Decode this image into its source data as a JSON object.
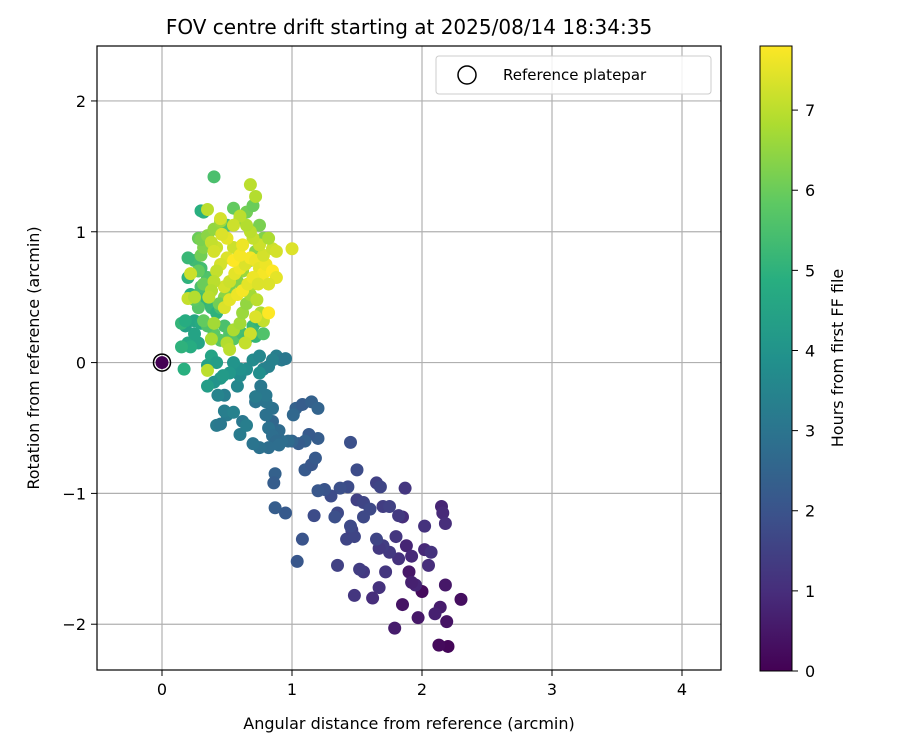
{
  "chart_data": {
    "type": "scatter",
    "title": "FOV centre drift starting at 2025/08/14 18:34:35",
    "xlabel": "Angular distance from reference (arcmin)",
    "ylabel": "Rotation from reference (arcmin)",
    "xlim": [
      -0.5,
      4.3
    ],
    "ylim": [
      -2.35,
      2.42
    ],
    "xticks": [
      0,
      1,
      2,
      3,
      4
    ],
    "yticks": [
      -2,
      -1,
      0,
      1,
      2
    ],
    "xtick_labels": [
      "0",
      "1",
      "2",
      "3",
      "4"
    ],
    "ytick_labels": [
      "−2",
      "−1",
      "0",
      "1",
      "2"
    ],
    "grid": true,
    "legend": {
      "placement": "top-right",
      "label": "Reference platepar"
    },
    "reference_point": {
      "x": 0,
      "y": 0
    },
    "colorbar": {
      "label": "Hours from first FF file",
      "colormap": "viridis",
      "range": [
        0,
        7.8
      ],
      "ticks": [
        0,
        1,
        2,
        3,
        4,
        5,
        6,
        7
      ],
      "tick_labels": [
        "0",
        "1",
        "2",
        "3",
        "4",
        "5",
        "6",
        "7"
      ]
    },
    "point_style": {
      "shape": "circle"
    },
    "points": [
      [
        2.2,
        -2.17,
        0.1
      ],
      [
        2.13,
        -2.16,
        0.2
      ],
      [
        2.3,
        -1.81,
        0.3
      ],
      [
        2.19,
        -1.98,
        0.4
      ],
      [
        2.18,
        -1.7,
        0.5
      ],
      [
        2.14,
        -1.87,
        0.6
      ],
      [
        2.1,
        -1.92,
        0.7
      ],
      [
        2.0,
        -1.75,
        0.2
      ],
      [
        1.95,
        -1.7,
        0.8
      ],
      [
        2.05,
        -1.55,
        1.0
      ],
      [
        2.02,
        -1.43,
        0.9
      ],
      [
        2.07,
        -1.45,
        1.1
      ],
      [
        1.9,
        -1.6,
        0.5
      ],
      [
        1.85,
        -1.85,
        0.4
      ],
      [
        1.79,
        -2.03,
        0.6
      ],
      [
        1.92,
        -1.68,
        0.7
      ],
      [
        1.97,
        -1.95,
        0.5
      ],
      [
        2.15,
        -1.1,
        0.8
      ],
      [
        2.16,
        -1.15,
        0.9
      ],
      [
        2.18,
        -1.23,
        1.0
      ],
      [
        2.02,
        -1.25,
        1.1
      ],
      [
        1.87,
        -0.96,
        1.2
      ],
      [
        1.85,
        -1.18,
        1.0
      ],
      [
        1.88,
        -1.4,
        0.8
      ],
      [
        1.92,
        -1.48,
        0.9
      ],
      [
        1.82,
        -1.5,
        1.1
      ],
      [
        1.8,
        -1.33,
        1.2
      ],
      [
        1.75,
        -1.45,
        1.3
      ],
      [
        1.7,
        -1.4,
        1.4
      ],
      [
        1.67,
        -1.42,
        1.3
      ],
      [
        1.72,
        -1.6,
        1.2
      ],
      [
        1.67,
        -1.72,
        1.1
      ],
      [
        1.62,
        -1.8,
        1.0
      ],
      [
        1.55,
        -1.6,
        1.3
      ],
      [
        1.52,
        -1.58,
        1.4
      ],
      [
        1.48,
        -1.78,
        1.2
      ],
      [
        1.35,
        -1.55,
        1.5
      ],
      [
        1.42,
        -1.35,
        1.6
      ],
      [
        1.46,
        -1.28,
        1.5
      ],
      [
        1.48,
        -1.33,
        1.6
      ],
      [
        1.45,
        -1.25,
        1.7
      ],
      [
        1.5,
        -1.05,
        1.5
      ],
      [
        1.55,
        -1.07,
        1.6
      ],
      [
        1.6,
        -1.12,
        1.7
      ],
      [
        1.65,
        -0.92,
        1.5
      ],
      [
        1.68,
        -0.95,
        1.6
      ],
      [
        1.7,
        -1.1,
        1.4
      ],
      [
        1.75,
        -1.1,
        1.5
      ],
      [
        1.82,
        -1.17,
        1.3
      ],
      [
        1.65,
        -1.35,
        1.6
      ],
      [
        1.55,
        -1.18,
        1.7
      ],
      [
        1.5,
        -0.82,
        1.8
      ],
      [
        1.45,
        -0.61,
        1.9
      ],
      [
        1.43,
        -0.95,
        1.8
      ],
      [
        1.37,
        -0.96,
        1.9
      ],
      [
        1.35,
        -1.15,
        1.7
      ],
      [
        1.3,
        -1.02,
        1.8
      ],
      [
        1.25,
        -0.97,
        2.0
      ],
      [
        1.2,
        -0.98,
        2.1
      ],
      [
        1.33,
        -1.18,
        1.9
      ],
      [
        1.17,
        -1.17,
        1.8
      ],
      [
        1.08,
        -1.35,
        2.0
      ],
      [
        1.04,
        -1.52,
        2.1
      ],
      [
        0.95,
        -1.15,
        2.2
      ],
      [
        0.87,
        -1.11,
        2.3
      ],
      [
        0.87,
        -0.85,
        2.4
      ],
      [
        0.86,
        -0.92,
        2.3
      ],
      [
        1.1,
        -0.82,
        2.2
      ],
      [
        1.15,
        -0.78,
        2.1
      ],
      [
        1.18,
        -0.73,
        2.2
      ],
      [
        1.2,
        -0.58,
        2.3
      ],
      [
        1.13,
        -0.55,
        2.2
      ],
      [
        1.1,
        -0.6,
        2.4
      ],
      [
        1.05,
        -0.62,
        2.3
      ],
      [
        1.0,
        -0.6,
        2.5
      ],
      [
        1.03,
        -0.35,
        2.4
      ],
      [
        1.08,
        -0.32,
        2.3
      ],
      [
        1.15,
        -0.3,
        2.4
      ],
      [
        1.2,
        -0.35,
        2.5
      ],
      [
        1.01,
        -0.4,
        2.6
      ],
      [
        0.97,
        -0.6,
        2.7
      ],
      [
        0.92,
        -0.6,
        2.8
      ],
      [
        0.9,
        -0.52,
        2.7
      ],
      [
        0.85,
        -0.45,
        2.6
      ],
      [
        0.82,
        -0.5,
        2.9
      ],
      [
        0.85,
        -0.56,
        2.8
      ],
      [
        0.88,
        -0.6,
        2.7
      ],
      [
        0.9,
        -0.63,
        2.8
      ],
      [
        0.85,
        -0.35,
        2.9
      ],
      [
        0.8,
        -0.3,
        3.0
      ],
      [
        0.8,
        -0.25,
        3.1
      ],
      [
        0.72,
        -0.3,
        3.0
      ],
      [
        0.72,
        -0.26,
        3.2
      ],
      [
        0.76,
        -0.18,
        3.1
      ],
      [
        0.8,
        -0.4,
        2.9
      ],
      [
        0.82,
        -0.65,
        2.8
      ],
      [
        0.75,
        -0.65,
        2.9
      ],
      [
        0.7,
        -0.62,
        3.0
      ],
      [
        0.62,
        -0.45,
        3.1
      ],
      [
        0.6,
        -0.55,
        3.2
      ],
      [
        0.65,
        -0.48,
        3.3
      ],
      [
        0.5,
        -0.4,
        3.2
      ],
      [
        0.48,
        -0.37,
        3.3
      ],
      [
        0.55,
        -0.38,
        3.4
      ],
      [
        0.42,
        -0.48,
        3.2
      ],
      [
        0.45,
        -0.47,
        3.1
      ],
      [
        0.48,
        -0.25,
        3.3
      ],
      [
        0.43,
        -0.25,
        3.5
      ],
      [
        0.58,
        -0.18,
        3.6
      ],
      [
        0.6,
        -0.1,
        3.7
      ],
      [
        0.65,
        -0.05,
        3.8
      ],
      [
        0.7,
        0.02,
        3.7
      ],
      [
        0.75,
        0.05,
        3.6
      ],
      [
        0.78,
        -0.05,
        3.5
      ],
      [
        0.82,
        -0.03,
        3.4
      ],
      [
        0.88,
        0.05,
        3.3
      ],
      [
        0.92,
        0.02,
        3.2
      ],
      [
        0.95,
        0.03,
        3.1
      ],
      [
        0.85,
        0.02,
        3.4
      ],
      [
        0.75,
        -0.08,
        3.8
      ],
      [
        0.6,
        -0.05,
        3.9
      ],
      [
        0.55,
        0.0,
        4.0
      ],
      [
        0.52,
        -0.08,
        4.1
      ],
      [
        0.45,
        -0.12,
        4.2
      ],
      [
        0.4,
        -0.15,
        4.0
      ],
      [
        0.35,
        -0.18,
        4.3
      ],
      [
        0.35,
        -0.02,
        4.4
      ],
      [
        0.38,
        0.05,
        4.5
      ],
      [
        0.42,
        0.0,
        4.3
      ],
      [
        0.47,
        -0.1,
        4.2
      ],
      [
        0.28,
        0.15,
        4.5
      ],
      [
        0.2,
        0.15,
        4.6
      ],
      [
        0.25,
        0.22,
        4.5
      ],
      [
        0.18,
        0.28,
        4.4
      ],
      [
        0.25,
        0.32,
        4.6
      ],
      [
        0.3,
        0.3,
        4.7
      ],
      [
        0.22,
        0.12,
        4.8
      ],
      [
        0.17,
        -0.05,
        4.9
      ],
      [
        0.15,
        0.12,
        5.0
      ],
      [
        0.15,
        0.3,
        5.1
      ],
      [
        0.18,
        0.32,
        4.8
      ],
      [
        0.22,
        0.52,
        4.9
      ],
      [
        0.2,
        0.65,
        5.0
      ],
      [
        0.28,
        0.52,
        5.2
      ],
      [
        0.32,
        0.47,
        5.1
      ],
      [
        0.35,
        0.52,
        5.3
      ],
      [
        0.38,
        0.42,
        5.2
      ],
      [
        0.42,
        0.38,
        5.0
      ],
      [
        0.45,
        0.42,
        5.4
      ],
      [
        0.48,
        0.28,
        5.5
      ],
      [
        0.52,
        0.22,
        5.6
      ],
      [
        0.55,
        0.18,
        5.7
      ],
      [
        0.58,
        0.25,
        5.5
      ],
      [
        0.62,
        0.22,
        5.4
      ],
      [
        0.65,
        0.18,
        5.3
      ],
      [
        0.7,
        0.28,
        5.2
      ],
      [
        0.72,
        0.2,
        5.1
      ],
      [
        0.75,
        0.32,
        5.0
      ],
      [
        0.78,
        0.22,
        5.6
      ],
      [
        0.45,
        0.17,
        5.7
      ],
      [
        0.4,
        0.22,
        5.8
      ],
      [
        0.35,
        0.28,
        5.6
      ],
      [
        0.32,
        0.32,
        5.9
      ],
      [
        0.28,
        0.42,
        5.7
      ],
      [
        0.25,
        0.48,
        5.8
      ],
      [
        0.3,
        0.58,
        5.5
      ],
      [
        0.35,
        0.65,
        5.6
      ],
      [
        0.3,
        0.72,
        5.4
      ],
      [
        0.25,
        0.78,
        5.3
      ],
      [
        0.2,
        0.8,
        5.2
      ],
      [
        0.32,
        1.15,
        5.0
      ],
      [
        0.3,
        1.16,
        4.9
      ],
      [
        0.4,
        1.42,
        5.5
      ],
      [
        0.45,
        1.0,
        5.8
      ],
      [
        0.5,
        1.05,
        5.6
      ],
      [
        0.55,
        1.18,
        5.9
      ],
      [
        0.6,
        1.1,
        6.0
      ],
      [
        0.65,
        1.15,
        6.1
      ],
      [
        0.7,
        1.2,
        6.0
      ],
      [
        0.75,
        1.05,
        6.2
      ],
      [
        0.78,
        0.95,
        6.3
      ],
      [
        0.72,
        0.85,
        6.4
      ],
      [
        0.68,
        0.78,
        6.5
      ],
      [
        0.62,
        0.7,
        6.6
      ],
      [
        0.58,
        0.62,
        6.3
      ],
      [
        0.52,
        0.55,
        6.2
      ],
      [
        0.48,
        0.5,
        6.4
      ],
      [
        0.44,
        0.45,
        6.1
      ],
      [
        0.38,
        0.55,
        6.2
      ],
      [
        0.32,
        0.6,
        6.0
      ],
      [
        0.28,
        0.7,
        5.9
      ],
      [
        0.3,
        0.82,
        6.1
      ],
      [
        0.32,
        0.88,
        6.3
      ],
      [
        0.28,
        0.95,
        6.0
      ],
      [
        0.3,
        0.94,
        6.2
      ],
      [
        0.35,
        0.97,
        6.4
      ],
      [
        0.4,
        1.02,
        6.5
      ],
      [
        0.45,
        1.08,
        6.6
      ],
      [
        0.4,
        0.3,
        6.7
      ],
      [
        0.38,
        0.18,
        6.8
      ],
      [
        0.5,
        0.15,
        6.9
      ],
      [
        0.52,
        0.1,
        7.0
      ],
      [
        0.55,
        0.25,
        6.8
      ],
      [
        0.6,
        0.3,
        6.7
      ],
      [
        0.62,
        0.38,
        6.6
      ],
      [
        0.65,
        0.45,
        6.5
      ],
      [
        0.68,
        0.52,
        6.7
      ],
      [
        0.7,
        0.6,
        6.9
      ],
      [
        0.73,
        0.48,
        7.0
      ],
      [
        0.76,
        0.38,
        6.8
      ],
      [
        0.78,
        0.32,
        7.1
      ],
      [
        0.82,
        0.38,
        7.8
      ],
      [
        0.72,
        0.35,
        7.4
      ],
      [
        0.68,
        0.22,
        7.2
      ],
      [
        0.64,
        0.15,
        7.1
      ],
      [
        0.48,
        0.58,
        7.3
      ],
      [
        0.52,
        0.62,
        7.2
      ],
      [
        0.56,
        0.68,
        7.5
      ],
      [
        0.6,
        0.72,
        7.6
      ],
      [
        0.64,
        0.75,
        7.4
      ],
      [
        0.68,
        0.8,
        7.7
      ],
      [
        0.72,
        0.78,
        7.6
      ],
      [
        0.75,
        0.72,
        7.5
      ],
      [
        0.78,
        0.68,
        7.7
      ],
      [
        0.8,
        0.75,
        7.6
      ],
      [
        0.85,
        0.7,
        7.8
      ],
      [
        0.88,
        0.65,
        7.5
      ],
      [
        0.82,
        0.6,
        7.4
      ],
      [
        0.78,
        0.82,
        7.3
      ],
      [
        0.75,
        0.9,
        7.2
      ],
      [
        0.7,
        0.95,
        7.1
      ],
      [
        0.68,
        1.0,
        7.0
      ],
      [
        0.65,
        1.05,
        6.9
      ],
      [
        0.6,
        1.12,
        7.0
      ],
      [
        0.55,
        0.88,
        7.2
      ],
      [
        0.5,
        0.8,
        7.4
      ],
      [
        0.45,
        0.75,
        7.3
      ],
      [
        0.42,
        0.7,
        7.1
      ],
      [
        0.4,
        0.62,
        7.0
      ],
      [
        0.38,
        0.55,
        6.9
      ],
      [
        0.36,
        0.5,
        7.0
      ],
      [
        0.42,
        0.88,
        7.2
      ],
      [
        0.38,
        0.92,
        7.1
      ],
      [
        0.35,
        1.17,
        7.0
      ],
      [
        0.45,
        1.1,
        7.3
      ],
      [
        0.55,
        1.05,
        7.2
      ],
      [
        0.68,
        1.36,
        7.0
      ],
      [
        0.72,
        1.27,
        6.9
      ],
      [
        0.85,
        0.87,
        7.2
      ],
      [
        0.88,
        0.85,
        7.3
      ],
      [
        1.0,
        0.87,
        7.4
      ],
      [
        0.82,
        0.95,
        6.8
      ],
      [
        0.22,
        0.68,
        7.2
      ],
      [
        0.2,
        0.49,
        7.1
      ],
      [
        0.25,
        0.5,
        6.9
      ],
      [
        0.35,
        -0.06,
        7.0
      ],
      [
        0.48,
        0.42,
        7.4
      ],
      [
        0.52,
        0.48,
        7.5
      ],
      [
        0.58,
        0.52,
        7.6
      ],
      [
        0.62,
        0.55,
        7.7
      ],
      [
        0.66,
        0.6,
        7.5
      ],
      [
        0.7,
        0.65,
        7.6
      ],
      [
        0.74,
        0.6,
        7.4
      ],
      [
        0.55,
        0.78,
        7.8
      ],
      [
        0.6,
        0.82,
        7.7
      ],
      [
        0.62,
        0.9,
        7.6
      ],
      [
        0.5,
        0.95,
        7.5
      ],
      [
        0.46,
        0.98,
        7.4
      ],
      [
        0.4,
        0.85,
        7.3
      ]
    ]
  }
}
